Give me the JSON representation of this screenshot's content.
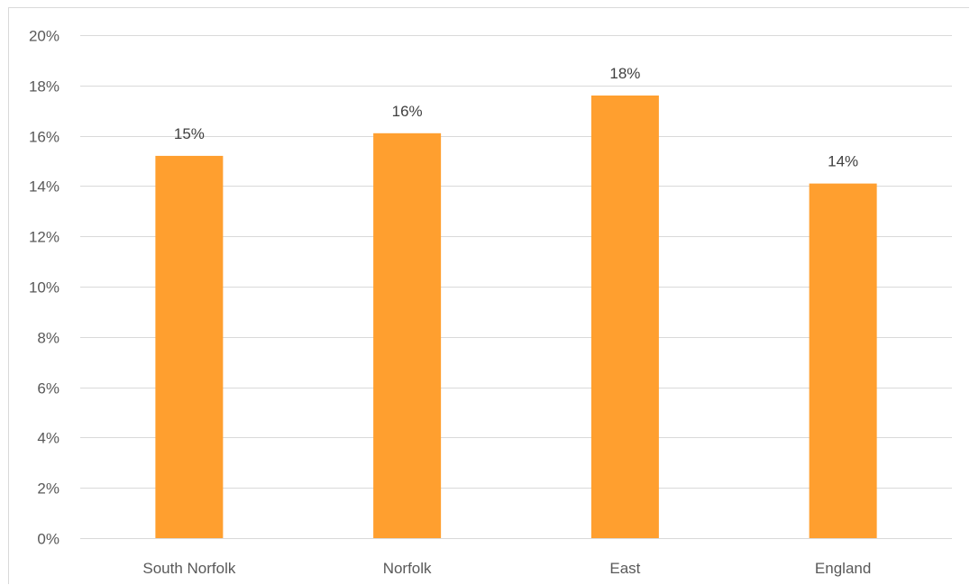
{
  "chart_data": {
    "type": "bar",
    "title": "",
    "xlabel": "",
    "ylabel": "",
    "categories": [
      "South Norfolk",
      "Norfolk",
      "East",
      "England"
    ],
    "values": [
      15.2,
      16.1,
      17.6,
      14.1
    ],
    "data_labels": [
      "15%",
      "16%",
      "18%",
      "14%"
    ],
    "ylim": [
      0,
      20
    ],
    "y_ticks": [
      0,
      2,
      4,
      6,
      8,
      10,
      12,
      14,
      16,
      18,
      20
    ],
    "y_tick_labels": [
      "0%",
      "2%",
      "4%",
      "6%",
      "8%",
      "10%",
      "12%",
      "14%",
      "16%",
      "18%",
      "20%"
    ],
    "bar_color": "#FF9F2F",
    "grid": true,
    "legend": "none"
  }
}
